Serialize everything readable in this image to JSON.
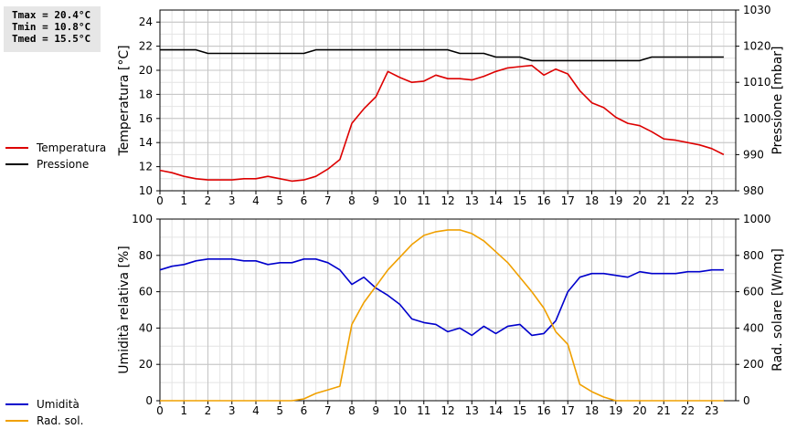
{
  "stats": {
    "tmax": "Tmax = 20.4°C",
    "tmin": "Tmin = 10.8°C",
    "tmed": "Tmed = 15.5°C"
  },
  "chart_data": [
    {
      "type": "line",
      "xlabel": "",
      "xlim": [
        0,
        24
      ],
      "xticks": [
        0,
        1,
        2,
        3,
        4,
        5,
        6,
        7,
        8,
        9,
        10,
        11,
        12,
        13,
        14,
        15,
        16,
        17,
        18,
        19,
        20,
        21,
        22,
        23
      ],
      "grid": true,
      "legend_position": "left",
      "ylabel": "Temperatura [°C]",
      "ylim": [
        10,
        25
      ],
      "yticks": [
        10,
        12,
        14,
        16,
        18,
        20,
        22,
        24
      ],
      "y2label": "Pressione [mbar]",
      "y2lim": [
        980,
        1030
      ],
      "y2ticks": [
        980,
        990,
        1000,
        1010,
        1020,
        1030
      ],
      "series": [
        {
          "name": "Temperatura",
          "axis": "left",
          "color": "#dd0000",
          "x": [
            0,
            0.5,
            1,
            1.5,
            2,
            2.5,
            3,
            3.5,
            4,
            4.5,
            5,
            5.5,
            6,
            6.5,
            7,
            7.5,
            8,
            8.5,
            9,
            9.5,
            10,
            10.5,
            11,
            11.5,
            12,
            12.5,
            13,
            13.5,
            14,
            14.5,
            15,
            15.5,
            16,
            16.5,
            17,
            17.5,
            18,
            18.5,
            19,
            19.5,
            20,
            20.5,
            21,
            21.5,
            22,
            22.5,
            23,
            23.5
          ],
          "y": [
            11.7,
            11.5,
            11.2,
            11.0,
            10.9,
            10.9,
            10.9,
            11.0,
            11.0,
            11.2,
            11.0,
            10.8,
            10.9,
            11.2,
            11.8,
            12.6,
            15.6,
            16.8,
            17.8,
            19.9,
            19.4,
            19.0,
            19.1,
            19.6,
            19.3,
            19.3,
            19.2,
            19.5,
            19.9,
            20.2,
            20.3,
            20.4,
            19.6,
            20.1,
            19.7,
            18.3,
            17.3,
            16.9,
            16.1,
            15.6,
            15.4,
            14.9,
            14.3,
            14.2,
            14.0,
            13.8,
            13.5,
            13.0
          ]
        },
        {
          "name": "Pressione",
          "axis": "right",
          "color": "#000000",
          "x": [
            0,
            0.5,
            1,
            1.5,
            2,
            2.5,
            3,
            3.5,
            4,
            4.5,
            5,
            5.5,
            6,
            6.5,
            7,
            7.5,
            8,
            8.5,
            9,
            9.5,
            10,
            10.5,
            11,
            11.5,
            12,
            12.5,
            13,
            13.5,
            14,
            14.5,
            15,
            15.5,
            16,
            16.5,
            17,
            17.5,
            18,
            18.5,
            19,
            19.5,
            20,
            20.5,
            21,
            21.5,
            22,
            22.5,
            23,
            23.5
          ],
          "y": [
            1019,
            1019,
            1019,
            1019,
            1018,
            1018,
            1018,
            1018,
            1018,
            1018,
            1018,
            1018,
            1018,
            1019,
            1019,
            1019,
            1019,
            1019,
            1019,
            1019,
            1019,
            1019,
            1019,
            1019,
            1019,
            1018,
            1018,
            1018,
            1017,
            1017,
            1017,
            1016,
            1016,
            1016,
            1016,
            1016,
            1016,
            1016,
            1016,
            1016,
            1016,
            1017,
            1017,
            1017,
            1017,
            1017,
            1017,
            1017
          ]
        }
      ]
    },
    {
      "type": "line",
      "xlabel": "",
      "xlim": [
        0,
        24
      ],
      "xticks": [
        0,
        1,
        2,
        3,
        4,
        5,
        6,
        7,
        8,
        9,
        10,
        11,
        12,
        13,
        14,
        15,
        16,
        17,
        18,
        19,
        20,
        21,
        22,
        23
      ],
      "grid": true,
      "legend_position": "left",
      "ylabel": "Umidità relativa [%]",
      "ylim": [
        0,
        100
      ],
      "yticks": [
        0,
        20,
        40,
        60,
        80,
        100
      ],
      "y2label": "Rad. solare [W/mq]",
      "y2lim": [
        0,
        1000
      ],
      "y2ticks": [
        0,
        200,
        400,
        600,
        800,
        1000
      ],
      "series": [
        {
          "name": "Umidità",
          "axis": "left",
          "color": "#0000cc",
          "x": [
            0,
            0.5,
            1,
            1.5,
            2,
            2.5,
            3,
            3.5,
            4,
            4.5,
            5,
            5.5,
            6,
            6.5,
            7,
            7.5,
            8,
            8.5,
            9,
            9.5,
            10,
            10.5,
            11,
            11.5,
            12,
            12.5,
            13,
            13.5,
            14,
            14.5,
            15,
            15.5,
            16,
            16.5,
            17,
            17.5,
            18,
            18.5,
            19,
            19.5,
            20,
            20.5,
            21,
            21.5,
            22,
            22.5,
            23,
            23.5
          ],
          "y": [
            72,
            74,
            75,
            77,
            78,
            78,
            78,
            77,
            77,
            75,
            76,
            76,
            78,
            78,
            76,
            72,
            64,
            68,
            62,
            58,
            53,
            45,
            43,
            42,
            38,
            40,
            36,
            41,
            37,
            41,
            42,
            36,
            37,
            44,
            60,
            68,
            70,
            70,
            69,
            68,
            71,
            70,
            70,
            70,
            71,
            71,
            72,
            72
          ]
        },
        {
          "name": "Rad. sol.",
          "axis": "right",
          "color": "#f0a000",
          "x": [
            0,
            0.5,
            1,
            1.5,
            2,
            2.5,
            3,
            3.5,
            4,
            4.5,
            5,
            5.5,
            6,
            6.5,
            7,
            7.5,
            8,
            8.5,
            9,
            9.5,
            10,
            10.5,
            11,
            11.5,
            12,
            12.5,
            13,
            13.5,
            14,
            14.5,
            15,
            15.5,
            16,
            16.5,
            17,
            17.5,
            18,
            18.5,
            19,
            19.5,
            20,
            20.5,
            21,
            21.5,
            22,
            22.5,
            23,
            23.5
          ],
          "y": [
            0,
            0,
            0,
            0,
            0,
            0,
            0,
            0,
            0,
            0,
            0,
            0,
            10,
            40,
            60,
            80,
            420,
            540,
            630,
            720,
            790,
            860,
            910,
            930,
            940,
            940,
            920,
            880,
            820,
            760,
            680,
            600,
            510,
            380,
            310,
            90,
            50,
            20,
            0,
            0,
            0,
            0,
            0,
            0,
            0,
            0,
            0,
            0
          ]
        }
      ]
    }
  ]
}
